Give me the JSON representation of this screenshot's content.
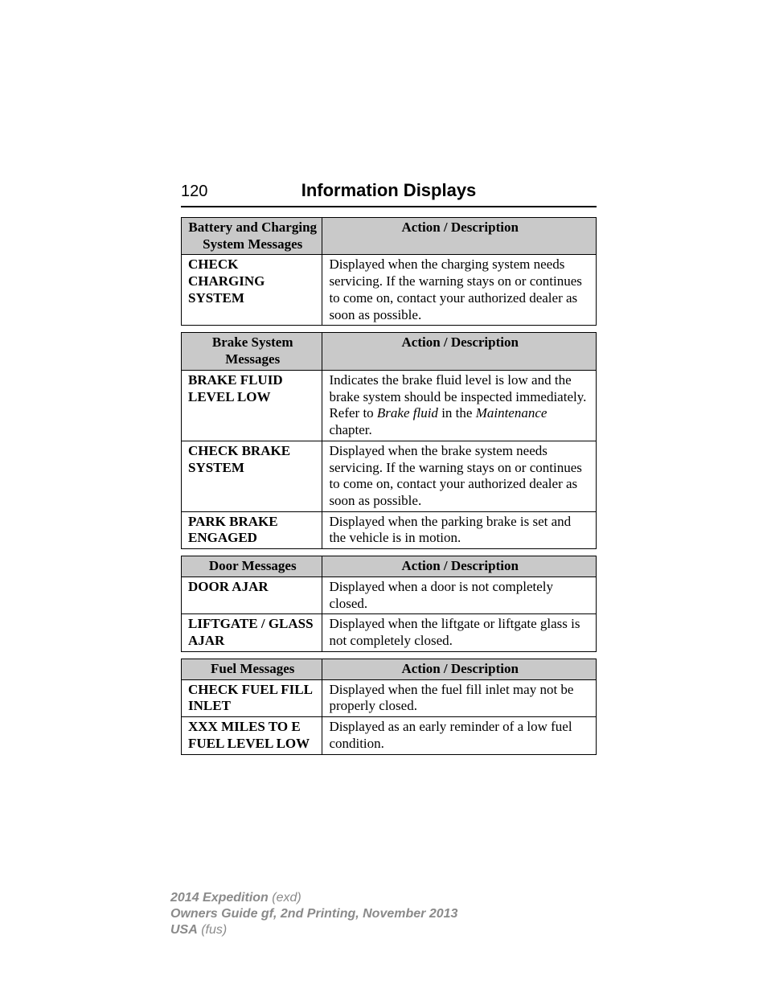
{
  "page": {
    "number": "120",
    "title": "Information Displays",
    "background_color": "#ffffff",
    "text_color": "#000000",
    "header_rule_color": "#000000",
    "table_header_bg": "#c9c9c9",
    "body_font": "Times New Roman",
    "heading_font": "Arial",
    "page_number_fontsize": 20,
    "title_fontsize": 22,
    "body_fontsize": 17,
    "col_widths_pct": [
      34,
      66
    ]
  },
  "tables": [
    {
      "header_left": "Battery and Charging System Messages",
      "header_right": "Action / Description",
      "rows": [
        {
          "label": "CHECK CHARGING SYSTEM",
          "desc": "Displayed when the charging system needs servicing. If the warning stays on or continues to come on, contact your authorized dealer as soon as possible."
        }
      ]
    },
    {
      "header_left": "Brake System Messages",
      "header_right": "Action / Description",
      "rows": [
        {
          "label": "BRAKE FLUID LEVEL LOW",
          "desc_html": true,
          "desc": "Indicates the brake fluid level is low and the brake system should be inspected immediately. Refer to <span class=\"ital\">Brake fluid</span> in the <span class=\"ital\">Maintenance</span> chapter."
        },
        {
          "label": "CHECK BRAKE SYSTEM",
          "desc": "Displayed when the brake system needs servicing. If the warning stays on or continues to come on, contact your authorized dealer as soon as possible."
        },
        {
          "label": "PARK BRAKE ENGAGED",
          "desc": "Displayed when the parking brake is set and the vehicle is in motion."
        }
      ]
    },
    {
      "header_left": "Door Messages",
      "header_right": "Action / Description",
      "rows": [
        {
          "label": "DOOR AJAR",
          "desc": "Displayed when a door is not completely closed."
        },
        {
          "label": "LIFTGATE / GLASS AJAR",
          "desc": "Displayed when the liftgate or liftgate glass is not completely closed."
        }
      ]
    },
    {
      "header_left": "Fuel Messages",
      "header_right": "Action / Description",
      "rows": [
        {
          "label": "CHECK FUEL FILL INLET",
          "desc": "Displayed when the fuel fill inlet may not be properly closed."
        },
        {
          "label": "XXX MILES TO E FUEL LEVEL LOW",
          "desc": "Displayed as an early reminder of a low fuel condition."
        }
      ]
    }
  ],
  "footer": {
    "line1_bold": "2014 Expedition",
    "line1_rest": " (exd)",
    "line2": "Owners Guide gf, 2nd Printing, November 2013",
    "line3_bold": "USA",
    "line3_rest": " (fus)",
    "color": "#8a8a8a",
    "fontsize": 16
  }
}
